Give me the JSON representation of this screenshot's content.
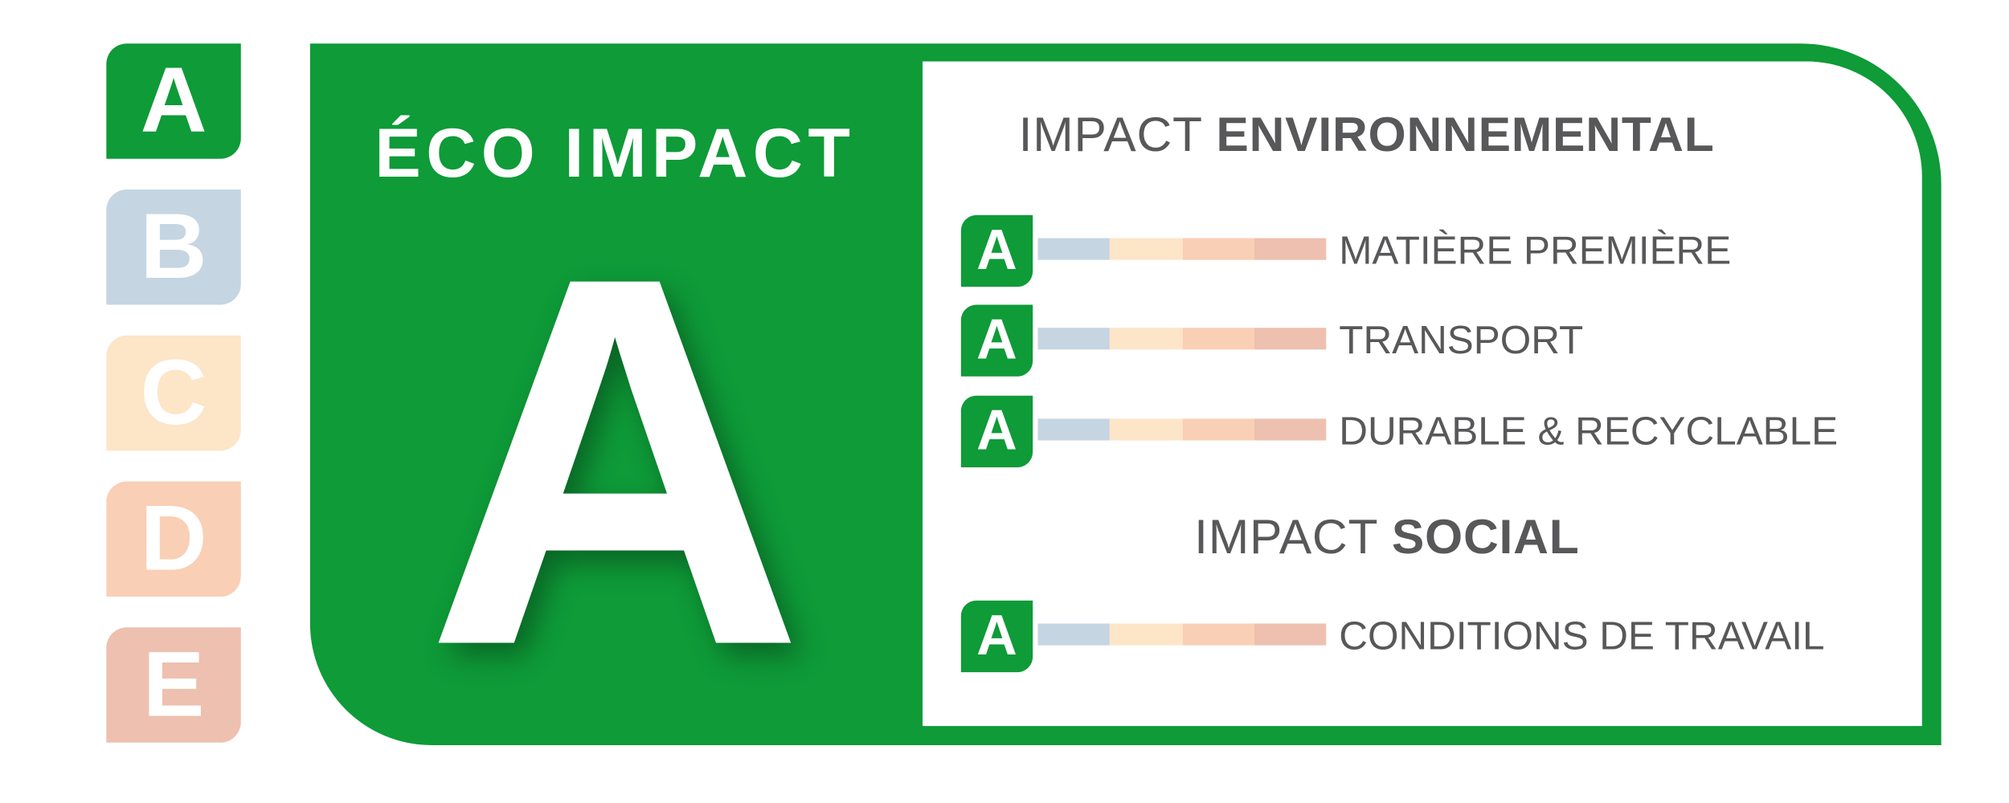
{
  "colors": {
    "green": "#0E9B38",
    "B": "#C5D5E2",
    "C": "#FDE5C8",
    "D": "#F9CFB5",
    "E": "#EEC0AF",
    "text": "#58585A"
  },
  "scale": [
    {
      "letter": "A",
      "color": "#0E9B38"
    },
    {
      "letter": "B",
      "color": "#C5D5E2"
    },
    {
      "letter": "C",
      "color": "#FDE5C8"
    },
    {
      "letter": "D",
      "color": "#F9CFB5"
    },
    {
      "letter": "E",
      "color": "#EEC0AF"
    }
  ],
  "panel": {
    "title": "ÉCO IMPACT",
    "overall_grade": "A"
  },
  "environmental": {
    "prefix": "IMPACT",
    "bold": "ENVIRONNEMENTAL",
    "items": [
      {
        "grade": "A",
        "label": "MATIÈRE PREMIÈRE"
      },
      {
        "grade": "A",
        "label": "TRANSPORT"
      },
      {
        "grade": "A",
        "label": "DURABLE & RECYCLABLE"
      }
    ]
  },
  "social": {
    "prefix": "IMPACT",
    "bold": "SOCIAL",
    "items": [
      {
        "grade": "A",
        "label": "CONDITIONS DE TRAVAIL"
      }
    ]
  }
}
